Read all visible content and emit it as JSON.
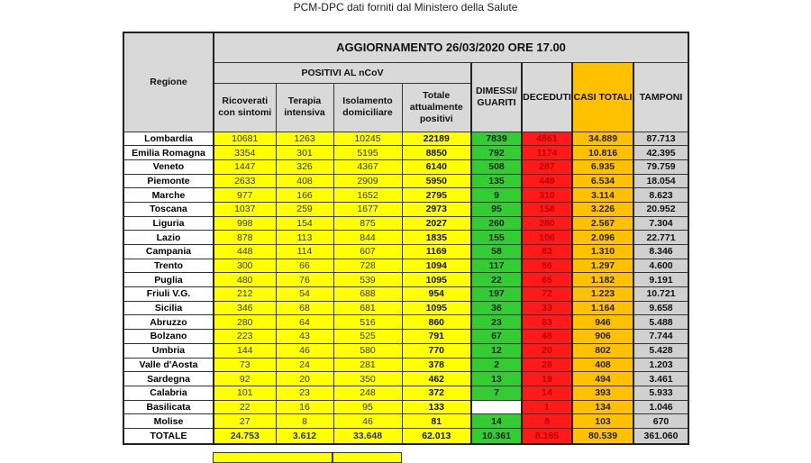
{
  "caption": "PCM-DPC dati forniti dal Ministero della Salute",
  "header": {
    "regione": "Regione",
    "update": "AGGIORNAMENTO 26/03/2020 ORE 17.00",
    "positivi": "POSITIVI AL nCoV",
    "columns": [
      "Ricoverati con sintomi",
      "Terapia intensiva",
      "Isolamento domiciliare",
      "Totale attualmente positivi",
      "DIMESSI/ GUARITI",
      "DECEDUTI",
      "CASI TOTALI",
      "TAMPONI"
    ]
  },
  "colors": {
    "yellow": "#ffff00",
    "green": "#33cc33",
    "red": "#ff1a1a",
    "orange": "#ffc000",
    "gray": "#d0d0d0"
  },
  "rows": [
    [
      "Lombardia",
      "10681",
      "1263",
      "10245",
      "22189",
      "7839",
      "4861",
      "34.889",
      "87.713"
    ],
    [
      "Emilia Romagna",
      "3354",
      "301",
      "5195",
      "8850",
      "792",
      "1174",
      "10.816",
      "42.395"
    ],
    [
      "Veneto",
      "1447",
      "326",
      "4367",
      "6140",
      "508",
      "287",
      "6.935",
      "79.759"
    ],
    [
      "Piemonte",
      "2633",
      "408",
      "2909",
      "5950",
      "135",
      "449",
      "6.534",
      "18.054"
    ],
    [
      "Marche",
      "977",
      "166",
      "1652",
      "2795",
      "9",
      "310",
      "3.114",
      "8.623"
    ],
    [
      "Toscana",
      "1037",
      "259",
      "1677",
      "2973",
      "95",
      "158",
      "3.226",
      "20.952"
    ],
    [
      "Liguria",
      "998",
      "154",
      "875",
      "2027",
      "260",
      "280",
      "2.567",
      "7.304"
    ],
    [
      "Lazio",
      "878",
      "113",
      "844",
      "1835",
      "155",
      "106",
      "2.096",
      "22.771"
    ],
    [
      "Campania",
      "448",
      "114",
      "607",
      "1169",
      "58",
      "83",
      "1.310",
      "8.346"
    ],
    [
      "Trento",
      "300",
      "66",
      "728",
      "1094",
      "117",
      "86",
      "1.297",
      "4.600"
    ],
    [
      "Puglia",
      "480",
      "76",
      "539",
      "1095",
      "22",
      "65",
      "1.182",
      "9.191"
    ],
    [
      "Friuli V.G.",
      "212",
      "54",
      "688",
      "954",
      "197",
      "72",
      "1.223",
      "10.721"
    ],
    [
      "Sicilia",
      "346",
      "68",
      "681",
      "1095",
      "36",
      "33",
      "1.164",
      "9.658"
    ],
    [
      "Abruzzo",
      "280",
      "64",
      "516",
      "860",
      "23",
      "63",
      "946",
      "5.488"
    ],
    [
      "Bolzano",
      "223",
      "43",
      "525",
      "791",
      "67",
      "48",
      "906",
      "7.744"
    ],
    [
      "Umbria",
      "144",
      "46",
      "580",
      "770",
      "12",
      "20",
      "802",
      "5.428"
    ],
    [
      "Valle d'Aosta",
      "73",
      "24",
      "281",
      "378",
      "2",
      "28",
      "408",
      "1.203"
    ],
    [
      "Sardegna",
      "92",
      "20",
      "350",
      "462",
      "13",
      "19",
      "494",
      "3.461"
    ],
    [
      "Calabria",
      "101",
      "23",
      "248",
      "372",
      "7",
      "14",
      "393",
      "5.933"
    ],
    [
      "Basilicata",
      "22",
      "16",
      "95",
      "133",
      "",
      "1",
      "134",
      "1.046"
    ],
    [
      "Molise",
      "27",
      "8",
      "46",
      "81",
      "14",
      "8",
      "103",
      "670"
    ]
  ],
  "total": [
    "TOTALE",
    "24.753",
    "3.612",
    "33.648",
    "62.013",
    "10.361",
    "8.165",
    "80.539",
    "361.060"
  ]
}
